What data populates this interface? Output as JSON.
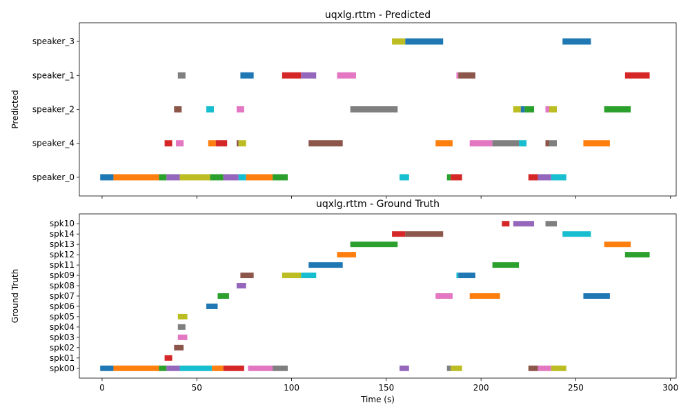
{
  "chart_data": [
    {
      "type": "timeline",
      "title": "uqxlg.rttm - Predicted",
      "ylabel": "Predicted",
      "xlim": [
        -12,
        303
      ],
      "xticks": [
        0,
        50,
        100,
        150,
        200,
        250,
        300
      ],
      "xtick_labels_visible": false,
      "rows": [
        "speaker_0",
        "speaker_4",
        "speaker_2",
        "speaker_1",
        "speaker_3"
      ],
      "segments": [
        {
          "row": "speaker_3",
          "start": 153,
          "end": 160,
          "color": "#bcbd22"
        },
        {
          "row": "speaker_3",
          "start": 160,
          "end": 180,
          "color": "#1f77b4"
        },
        {
          "row": "speaker_3",
          "start": 243,
          "end": 258,
          "color": "#1f77b4"
        },
        {
          "row": "speaker_1",
          "start": 40,
          "end": 44,
          "color": "#7f7f7f"
        },
        {
          "row": "speaker_1",
          "start": 73,
          "end": 80,
          "color": "#1f77b4"
        },
        {
          "row": "speaker_1",
          "start": 95,
          "end": 105,
          "color": "#d62728"
        },
        {
          "row": "speaker_1",
          "start": 105,
          "end": 113,
          "color": "#9467bd"
        },
        {
          "row": "speaker_1",
          "start": 124,
          "end": 134,
          "color": "#e377c2"
        },
        {
          "row": "speaker_1",
          "start": 187,
          "end": 188,
          "color": "#e377c2"
        },
        {
          "row": "speaker_1",
          "start": 188,
          "end": 197,
          "color": "#8c564b"
        },
        {
          "row": "speaker_1",
          "start": 276,
          "end": 289,
          "color": "#d62728"
        },
        {
          "row": "speaker_2",
          "start": 38,
          "end": 42,
          "color": "#8c564b"
        },
        {
          "row": "speaker_2",
          "start": 55,
          "end": 59,
          "color": "#17becf"
        },
        {
          "row": "speaker_2",
          "start": 71,
          "end": 75,
          "color": "#e377c2"
        },
        {
          "row": "speaker_2",
          "start": 131,
          "end": 156,
          "color": "#7f7f7f"
        },
        {
          "row": "speaker_2",
          "start": 217,
          "end": 221,
          "color": "#bcbd22"
        },
        {
          "row": "speaker_2",
          "start": 221,
          "end": 223,
          "color": "#1f77b4"
        },
        {
          "row": "speaker_2",
          "start": 223,
          "end": 228,
          "color": "#2ca02c"
        },
        {
          "row": "speaker_2",
          "start": 234,
          "end": 236,
          "color": "#e377c2"
        },
        {
          "row": "speaker_2",
          "start": 236,
          "end": 240,
          "color": "#bcbd22"
        },
        {
          "row": "speaker_2",
          "start": 265,
          "end": 279,
          "color": "#2ca02c"
        },
        {
          "row": "speaker_4",
          "start": 33,
          "end": 37,
          "color": "#d62728"
        },
        {
          "row": "speaker_4",
          "start": 39,
          "end": 43,
          "color": "#e377c2"
        },
        {
          "row": "speaker_4",
          "start": 56,
          "end": 60,
          "color": "#ff7f0e"
        },
        {
          "row": "speaker_4",
          "start": 60,
          "end": 66,
          "color": "#d62728"
        },
        {
          "row": "speaker_4",
          "start": 71,
          "end": 72,
          "color": "#8c564b"
        },
        {
          "row": "speaker_4",
          "start": 72,
          "end": 76,
          "color": "#bcbd22"
        },
        {
          "row": "speaker_4",
          "start": 109,
          "end": 127,
          "color": "#8c564b"
        },
        {
          "row": "speaker_4",
          "start": 176,
          "end": 185,
          "color": "#ff7f0e"
        },
        {
          "row": "speaker_4",
          "start": 194,
          "end": 206,
          "color": "#e377c2"
        },
        {
          "row": "speaker_4",
          "start": 206,
          "end": 220,
          "color": "#7f7f7f"
        },
        {
          "row": "speaker_4",
          "start": 220,
          "end": 224,
          "color": "#17becf"
        },
        {
          "row": "speaker_4",
          "start": 234,
          "end": 236,
          "color": "#8c564b"
        },
        {
          "row": "speaker_4",
          "start": 236,
          "end": 240,
          "color": "#7f7f7f"
        },
        {
          "row": "speaker_4",
          "start": 254,
          "end": 268,
          "color": "#ff7f0e"
        },
        {
          "row": "speaker_0",
          "start": -1,
          "end": 6,
          "color": "#1f77b4"
        },
        {
          "row": "speaker_0",
          "start": 6,
          "end": 30,
          "color": "#ff7f0e"
        },
        {
          "row": "speaker_0",
          "start": 30,
          "end": 34,
          "color": "#2ca02c"
        },
        {
          "row": "speaker_0",
          "start": 34,
          "end": 41,
          "color": "#9467bd"
        },
        {
          "row": "speaker_0",
          "start": 41,
          "end": 57,
          "color": "#bcbd22"
        },
        {
          "row": "speaker_0",
          "start": 57,
          "end": 64,
          "color": "#2ca02c"
        },
        {
          "row": "speaker_0",
          "start": 64,
          "end": 72,
          "color": "#9467bd"
        },
        {
          "row": "speaker_0",
          "start": 72,
          "end": 76,
          "color": "#17becf"
        },
        {
          "row": "speaker_0",
          "start": 76,
          "end": 90,
          "color": "#ff7f0e"
        },
        {
          "row": "speaker_0",
          "start": 90,
          "end": 98,
          "color": "#2ca02c"
        },
        {
          "row": "speaker_0",
          "start": 157,
          "end": 162,
          "color": "#17becf"
        },
        {
          "row": "speaker_0",
          "start": 182,
          "end": 184,
          "color": "#2ca02c"
        },
        {
          "row": "speaker_0",
          "start": 184,
          "end": 190,
          "color": "#d62728"
        },
        {
          "row": "speaker_0",
          "start": 225,
          "end": 230,
          "color": "#d62728"
        },
        {
          "row": "speaker_0",
          "start": 230,
          "end": 237,
          "color": "#9467bd"
        },
        {
          "row": "speaker_0",
          "start": 237,
          "end": 245,
          "color": "#17becf"
        }
      ]
    },
    {
      "type": "timeline",
      "title": "uqxlg.rttm - Ground Truth",
      "ylabel": "Ground Truth",
      "xlabel": "Time (s)",
      "xlim": [
        -12,
        303
      ],
      "xticks": [
        0,
        50,
        100,
        150,
        200,
        250,
        300
      ],
      "xtick_labels_visible": true,
      "rows": [
        "spk00",
        "spk01",
        "spk02",
        "spk03",
        "spk04",
        "spk05",
        "spk06",
        "spk07",
        "spk08",
        "spk09",
        "spk11",
        "spk12",
        "spk13",
        "spk14",
        "spk10"
      ],
      "segments": [
        {
          "row": "spk10",
          "start": 211,
          "end": 215,
          "color": "#d62728"
        },
        {
          "row": "spk10",
          "start": 217,
          "end": 228,
          "color": "#9467bd"
        },
        {
          "row": "spk10",
          "start": 234,
          "end": 240,
          "color": "#7f7f7f"
        },
        {
          "row": "spk14",
          "start": 153,
          "end": 160,
          "color": "#d62728"
        },
        {
          "row": "spk14",
          "start": 160,
          "end": 180,
          "color": "#8c564b"
        },
        {
          "row": "spk14",
          "start": 243,
          "end": 258,
          "color": "#17becf"
        },
        {
          "row": "spk13",
          "start": 131,
          "end": 156,
          "color": "#2ca02c"
        },
        {
          "row": "spk13",
          "start": 265,
          "end": 279,
          "color": "#ff7f0e"
        },
        {
          "row": "spk12",
          "start": 124,
          "end": 134,
          "color": "#ff7f0e"
        },
        {
          "row": "spk12",
          "start": 276,
          "end": 289,
          "color": "#2ca02c"
        },
        {
          "row": "spk11",
          "start": 109,
          "end": 127,
          "color": "#1f77b4"
        },
        {
          "row": "spk11",
          "start": 206,
          "end": 220,
          "color": "#2ca02c"
        },
        {
          "row": "spk09",
          "start": 73,
          "end": 80,
          "color": "#8c564b"
        },
        {
          "row": "spk09",
          "start": 95,
          "end": 105,
          "color": "#bcbd22"
        },
        {
          "row": "spk09",
          "start": 105,
          "end": 113,
          "color": "#17becf"
        },
        {
          "row": "spk09",
          "start": 187,
          "end": 188,
          "color": "#17becf"
        },
        {
          "row": "spk09",
          "start": 188,
          "end": 197,
          "color": "#1f77b4"
        },
        {
          "row": "spk08",
          "start": 71,
          "end": 76,
          "color": "#9467bd"
        },
        {
          "row": "spk07",
          "start": 61,
          "end": 67,
          "color": "#2ca02c"
        },
        {
          "row": "spk07",
          "start": 176,
          "end": 185,
          "color": "#e377c2"
        },
        {
          "row": "spk07",
          "start": 194,
          "end": 210,
          "color": "#ff7f0e"
        },
        {
          "row": "spk07",
          "start": 254,
          "end": 268,
          "color": "#1f77b4"
        },
        {
          "row": "spk06",
          "start": 55,
          "end": 61,
          "color": "#1f77b4"
        },
        {
          "row": "spk05",
          "start": 40,
          "end": 45,
          "color": "#bcbd22"
        },
        {
          "row": "spk04",
          "start": 40,
          "end": 44,
          "color": "#7f7f7f"
        },
        {
          "row": "spk03",
          "start": 40,
          "end": 45,
          "color": "#e377c2"
        },
        {
          "row": "spk02",
          "start": 38,
          "end": 43,
          "color": "#8c564b"
        },
        {
          "row": "spk01",
          "start": 33,
          "end": 37,
          "color": "#d62728"
        },
        {
          "row": "spk00",
          "start": -1,
          "end": 6,
          "color": "#1f77b4"
        },
        {
          "row": "spk00",
          "start": 6,
          "end": 30,
          "color": "#ff7f0e"
        },
        {
          "row": "spk00",
          "start": 30,
          "end": 34,
          "color": "#2ca02c"
        },
        {
          "row": "spk00",
          "start": 34,
          "end": 41,
          "color": "#9467bd"
        },
        {
          "row": "spk00",
          "start": 41,
          "end": 58,
          "color": "#17becf"
        },
        {
          "row": "spk00",
          "start": 58,
          "end": 64,
          "color": "#ff7f0e"
        },
        {
          "row": "spk00",
          "start": 64,
          "end": 75,
          "color": "#d62728"
        },
        {
          "row": "spk00",
          "start": 77,
          "end": 90,
          "color": "#e377c2"
        },
        {
          "row": "spk00",
          "start": 90,
          "end": 98,
          "color": "#7f7f7f"
        },
        {
          "row": "spk00",
          "start": 157,
          "end": 162,
          "color": "#9467bd"
        },
        {
          "row": "spk00",
          "start": 182,
          "end": 184,
          "color": "#7f7f7f"
        },
        {
          "row": "spk00",
          "start": 184,
          "end": 190,
          "color": "#bcbd22"
        },
        {
          "row": "spk00",
          "start": 225,
          "end": 230,
          "color": "#8c564b"
        },
        {
          "row": "spk00",
          "start": 230,
          "end": 237,
          "color": "#e377c2"
        },
        {
          "row": "spk00",
          "start": 237,
          "end": 245,
          "color": "#bcbd22"
        }
      ]
    }
  ]
}
